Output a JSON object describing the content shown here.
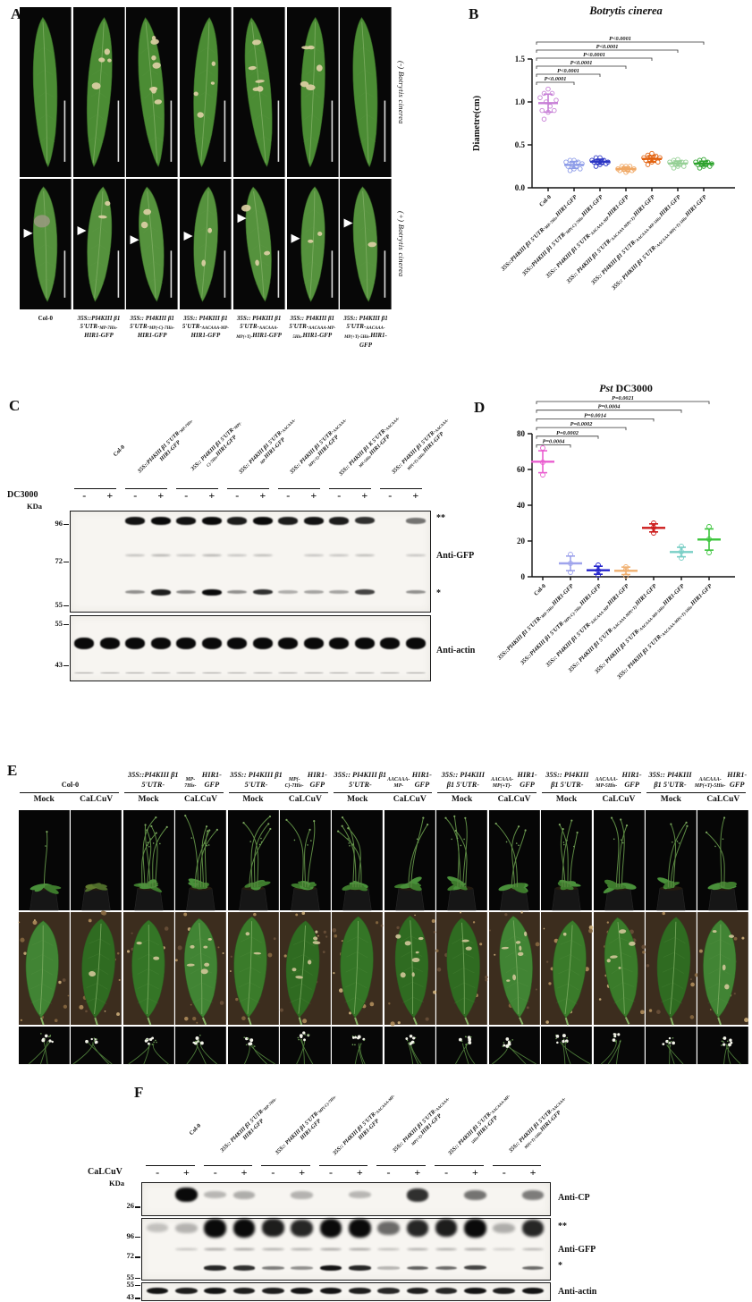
{
  "figure": {
    "background": "#ffffff"
  },
  "genotype_labels": [
    "Col-0",
    "35S::PI4KIII β1 5'UTR-~MP-7His-~HIR1-GFP",
    "35S::PI4KIII β1 5'UTR-~MP(-C)-7His-~HIR1-GFP",
    "35S:: PI4KIII β1 5'UTR-~AACAAA-MP-~HIR1-GFP",
    "35S:: PI4KIII β1 5'UTR-~AACAAA-MP(+T)-~HIR1-GFP",
    "35S:: PI4KIII β1 5'UTR-~AACAAA-MP-5His-~HIR1-GFP",
    "35S:: PI4KIII β1 5'UTR-~AACAAA-MP(+T)-5His-~HIR1-GFP"
  ],
  "panelA": {
    "label": "A",
    "row_labels": [
      "(-) Botrytis cinerea",
      "(+) Botrytis cinerea"
    ],
    "col_labels": [
      "Col-0",
      "35S::PI4KIII β1 5'UTR-~MP-7His-~HIR1-GFP",
      "35S:: PI4KIII β1 5'UTR-~MP(-C)-7His-~HIR1-GFP",
      "35S:: PI4KIII β1 5'UTR-~AACAAA-MP-~HIR1-GFP",
      "35S:: PI4KIII β1 5'UTR-~AACAAA-MP(+T)-~HIR1-GFP",
      "35S:: PI4KIII β1 5'UTR-~AACAAA-MP-5His-~HIR1-GFP",
      "35S:: PI4KIII β1 5'UTR-~AACAAA-MP(+T)-5His-~HIR1-GFP"
    ],
    "lesion_spots_row1": [
      0,
      4,
      7,
      4,
      5,
      5,
      0
    ],
    "lesion_spots_row2": [
      0,
      2,
      2,
      2,
      3,
      2,
      1
    ],
    "leaf_rotation": [
      -2,
      4,
      -5,
      3,
      -6,
      2,
      -3
    ]
  },
  "panelB": {
    "label": "B"
  },
  "panelC": {
    "label": "C",
    "treatment_label": "DC3000",
    "kda_label": "KDa",
    "minus": "-",
    "plus": "+",
    "lane_labels": [
      "Col-0",
      "35S::PI4KIII β1 5'UTR-~MP-7His-~HIR1-GFP",
      "35S:: PI4KIII β1 5'UTR-~MP(-C)-7His-~HIR1-GFP",
      "35S:: PI4KIII β1 5'UTR-~AACAAA-MP-~HIR1-GFP",
      "35S:: PI4KIII β1 5'UTR-~AACAAA-MP(+T)-~HIR1-GFP",
      "35S:: PI4KIII β1 K 5'UTR-~AACAAA-MP-5His-~HIR1-GFP",
      "35S:: PI4KIII β1 5'UTR-~AACAAA-MP(+T)-5His-~HIR1-GFP"
    ],
    "right_labels": [
      "**",
      "Anti-GFP",
      "*",
      "Anti-actin"
    ],
    "blots": [
      {
        "name": "anti-gfp",
        "markers": [
          {
            "kda": "96",
            "pos": 0.13
          },
          {
            "kda": "72",
            "pos": 0.5
          },
          {
            "kda": "55",
            "pos": 0.93
          }
        ],
        "bands": [
          {
            "frac": 0.1,
            "h": 9,
            "blur": 0.8,
            "intensities": [
              0,
              0,
              0.95,
              1,
              0.95,
              1,
              0.9,
              1,
              0.9,
              0.95,
              0.9,
              0.8,
              0,
              0.45
            ]
          },
          {
            "frac": 0.44,
            "h": 4,
            "blur": 1.1,
            "intensities": [
              0,
              0,
              0.12,
              0.2,
              0.1,
              0.2,
              0.1,
              0.15,
              0,
              0.1,
              0.1,
              0.15,
              0,
              0.1
            ]
          },
          {
            "frac": 0.8,
            "h": 7,
            "blur": 0.8,
            "intensities": [
              0,
              0,
              0.3,
              0.9,
              0.35,
              1,
              0.3,
              0.8,
              0.15,
              0.2,
              0.2,
              0.7,
              0,
              0.3
            ]
          }
        ]
      },
      {
        "name": "anti-actin",
        "markers": [
          {
            "kda": "55",
            "pos": 0.13
          },
          {
            "kda": "43",
            "pos": 0.75
          }
        ],
        "bands": [
          {
            "frac": 0.42,
            "h": 13,
            "blur": 0.8,
            "intensities": [
              1,
              1,
              1,
              1,
              1,
              1,
              1,
              1,
              1,
              1,
              1,
              1,
              1,
              1
            ]
          },
          {
            "frac": 0.87,
            "h": 2.5,
            "blur": 0.5,
            "intensities": [
              0.25,
              0.25,
              0.25,
              0.25,
              0.25,
              0.25,
              0.25,
              0.25,
              0.25,
              0.25,
              0.25,
              0.25,
              0.25,
              0.25
            ]
          }
        ]
      }
    ]
  },
  "panelD": {
    "label": "D"
  },
  "panelE": {
    "label": "E",
    "col_labels": [
      "Col-0",
      "35S::PI4KIII β1 5'UTR-~MP-7His-~HIR1-GFP",
      "35S:: PI4KIII β1 5'UTR-~MP(-C)-7His-~HIR1-GFP",
      "35S:: PI4KIII β1 5'UTR-~AACAAA-MP-~HIR1-GFP",
      "35S:: PI4KIII β1 5'UTR-~AACAAA-MP(+T)-~HIR1-GFP",
      "35S:: PI4KIII β1 5'UTR-~AACAAA-MP-5His-~HIR1-GFP",
      "35S:: PI4KIII β1 5'UTR-~AACAAA-MP(+T)-5His-~HIR1-GFP"
    ],
    "treatments": [
      "Mock",
      "CaLCuV"
    ],
    "stems": [
      1,
      0,
      6,
      5,
      4,
      3,
      4,
      2,
      4,
      3,
      4,
      3,
      3,
      2
    ],
    "leaf_spots": [
      0,
      1,
      2,
      6,
      2,
      6,
      0,
      7,
      2,
      7,
      1,
      5,
      0,
      4
    ]
  },
  "panelF": {
    "label": "F",
    "treatment_label": "CaLCuV",
    "kda_label": "KDa",
    "minus": "-",
    "plus": "+",
    "lane_labels": [
      "Col-0",
      "35S:: PI4KIII β1 5'UTR-~MP-7His-~HIR1-GFP",
      "35S:: PI4KIII β1 5'UTR-~MP(-C)-7His-~HIR1-GFP",
      "35S:: PI4KIII β1 5'UTR-~AACAAA-MP-~HIR1-GFP",
      "35S:: PI4KIII β1 5'UTR-~AACAAA-MP(+T)-~HIR1-GFP",
      "35S:: PI4KIII β1 5'UTR-~AACAAA-MP-5His-~HIR1-GFP",
      "35S:: PI4KIII β1 5'UTR-~AACAAA-MP(+T)-5His-~HIR1-GFP"
    ],
    "right_labels": [
      "Anti-CP",
      "**",
      "Anti-GFP",
      "*",
      "Anti-actin"
    ],
    "blots": [
      {
        "name": "anti-cp",
        "markers": [
          {
            "kda": "26",
            "pos": 0.72
          }
        ],
        "bands": [
          {
            "frac": 0.38,
            "h": 16,
            "blur": 1.3,
            "intensities": [
              0,
              1,
              0.1,
              0.15,
              0,
              0.12,
              0,
              0.1,
              0,
              0.8,
              0,
              0.45,
              0,
              0.4
            ]
          }
        ]
      },
      {
        "name": "anti-gfp",
        "markers": [
          {
            "kda": "96",
            "pos": 0.3
          },
          {
            "kda": "72",
            "pos": 0.62
          },
          {
            "kda": "55",
            "pos": 0.95
          }
        ],
        "bands": [
          {
            "frac": 0.16,
            "h": 21,
            "blur": 1.6,
            "intensities": [
              0.05,
              0.12,
              1,
              1,
              0.9,
              0.85,
              1,
              1,
              0.5,
              0.85,
              0.9,
              1,
              0.15,
              0.85
            ]
          },
          {
            "frac": 0.5,
            "h": 4,
            "blur": 1.2,
            "intensities": [
              0,
              0.1,
              0.3,
              0.3,
              0.25,
              0.25,
              0.3,
              0.3,
              0.15,
              0.25,
              0.25,
              0.3,
              0.05,
              0.2
            ]
          },
          {
            "frac": 0.8,
            "h": 6,
            "blur": 0.8,
            "intensities": [
              0,
              0,
              0.85,
              0.8,
              0.4,
              0.3,
              0.95,
              0.85,
              0.1,
              0.55,
              0.5,
              0.7,
              0,
              0.5
            ]
          }
        ]
      },
      {
        "name": "anti-actin",
        "markers": [
          {
            "kda": "55",
            "pos": 0.12
          },
          {
            "kda": "43",
            "pos": 0.82
          }
        ],
        "bands": [
          {
            "frac": 0.45,
            "h": 8,
            "blur": 0.7,
            "intensities": [
              0.95,
              0.9,
              0.95,
              0.9,
              0.9,
              0.95,
              0.95,
              0.9,
              0.85,
              0.9,
              0.85,
              0.95,
              0.9,
              0.95
            ]
          }
        ]
      }
    ]
  },
  "chart_data": [
    {
      "id": "botrytis",
      "type": "scatter",
      "title": "_Botrytis cinerea_",
      "ylabel": "Diametre(cm)",
      "xlabel": "",
      "ylim": [
        0,
        1.5
      ],
      "yticks": [
        0,
        0.5,
        1,
        1.5
      ],
      "ytick_labels": [
        "0.0",
        "0.5",
        "1.0",
        "1.5"
      ],
      "grid": false,
      "legend": "none",
      "categories": [
        "Col-0",
        "35S::PI4KIII β1 5'UTR-~MP-7His-~HIR1-GFP",
        "35S::PI4KIII β1 5'UTR-~MP(-C)-7His-~HIR1-GFP",
        "35S:: PI4KIII β1 5'UTR-~AACAAA-MP-~HIR1-GFP",
        "35S:: PI4KIII β1 5'UTR-~AACAAA-MP(+T)-~HIR1-GFP",
        "35S:: PI4KIII β1 5'UTR-~AACAAA-MP-5His-~HIR1-GFP",
        "35S:: PI4KIII β1 5'UTR-~AACAAA-MP(+T)-5His-~HIR1-GFP"
      ],
      "series": [
        {
          "color": "#c77fd6",
          "mean": 1.0,
          "points": [
            0.8,
            0.88,
            0.9,
            0.9,
            0.95,
            1.0,
            1.02,
            1.05,
            1.1,
            1.1,
            1.15
          ]
        },
        {
          "color": "#8d9ce8",
          "mean": 0.27,
          "points": [
            0.2,
            0.22,
            0.22,
            0.25,
            0.25,
            0.27,
            0.28,
            0.3,
            0.3,
            0.32,
            0.32
          ]
        },
        {
          "color": "#2b35c4",
          "mean": 0.3,
          "points": [
            0.25,
            0.27,
            0.28,
            0.3,
            0.3,
            0.3,
            0.3,
            0.32,
            0.32,
            0.35,
            0.35
          ]
        },
        {
          "color": "#f0a864",
          "mean": 0.22,
          "points": [
            0.18,
            0.2,
            0.2,
            0.2,
            0.22,
            0.22,
            0.22,
            0.25,
            0.25,
            0.25
          ]
        },
        {
          "color": "#e2610e",
          "mean": 0.34,
          "points": [
            0.27,
            0.3,
            0.3,
            0.32,
            0.33,
            0.33,
            0.35,
            0.35,
            0.37,
            0.38,
            0.4
          ]
        },
        {
          "color": "#96d096",
          "mean": 0.28,
          "points": [
            0.23,
            0.25,
            0.25,
            0.27,
            0.28,
            0.28,
            0.3,
            0.3,
            0.3,
            0.32,
            0.33
          ]
        },
        {
          "color": "#2ea32e",
          "mean": 0.28,
          "points": [
            0.23,
            0.25,
            0.25,
            0.27,
            0.28,
            0.28,
            0.28,
            0.3,
            0.3,
            0.32,
            0.33
          ]
        }
      ],
      "pvalues_top_to_bottom": [
        "P<0.0001",
        "P<0.0001",
        "P<0.0001",
        "P<0.0001",
        "P<0.0001",
        "P<0.0001"
      ]
    },
    {
      "id": "pst",
      "type": "scatter",
      "title": "_Pst_ DC3000",
      "ylabel": "",
      "xlabel": "",
      "ylim": [
        0,
        80
      ],
      "yticks": [
        0,
        20,
        40,
        60,
        80
      ],
      "ytick_labels": [
        "0",
        "20",
        "40",
        "60",
        "80"
      ],
      "grid": false,
      "legend": "none",
      "categories": [
        "Col-0",
        "35S::PI4KIII β1 5'UTR-~MP-7His-~HIR1-GFP",
        "35S::PI4KIII β1 5'UTR-~MP(-C)-7His-~HIR1-GFP",
        "35S:: PI4KIII β1 5'UTR-~AACAAA-MP-~HIR1-GFP",
        "35S:: PI4KIII β1 5'UTR-~AACAAA-MP(+T)-~HIR1-GFP",
        "35S:: PI4KIII β1 5'UTR-~AACAAA-MP-5His-~HIR1-GFP",
        "35S:: PI4KIII β1 5'UTR-~AACAAA-MP(+T)-5His-~HIR1-GFP"
      ],
      "series": [
        {
          "color": "#ea5fd0",
          "mean": 64.3,
          "points": [
            57,
            64,
            72
          ]
        },
        {
          "color": "#9fa4ec",
          "mean": 7.5,
          "points": [
            2.5,
            7.5,
            12.5
          ]
        },
        {
          "color": "#2424cc",
          "mean": 3.7,
          "points": [
            1,
            3.5,
            6.5
          ]
        },
        {
          "color": "#f0b070",
          "mean": 3.3,
          "points": [
            0.5,
            4,
            5.5
          ]
        },
        {
          "color": "#cc1a1a",
          "mean": 27.3,
          "points": [
            24.5,
            27.5,
            30
          ]
        },
        {
          "color": "#79cfc6",
          "mean": 13.8,
          "points": [
            10.5,
            14,
            17
          ]
        },
        {
          "color": "#3bc43b",
          "mean": 20.8,
          "points": [
            13.5,
            21,
            28
          ]
        }
      ],
      "pvalues_top_to_bottom": [
        "P=0.0021",
        "P=0.0004",
        "P=0.0014",
        "P=0.0002",
        "P=0.0002",
        "P=0.0004"
      ]
    }
  ]
}
